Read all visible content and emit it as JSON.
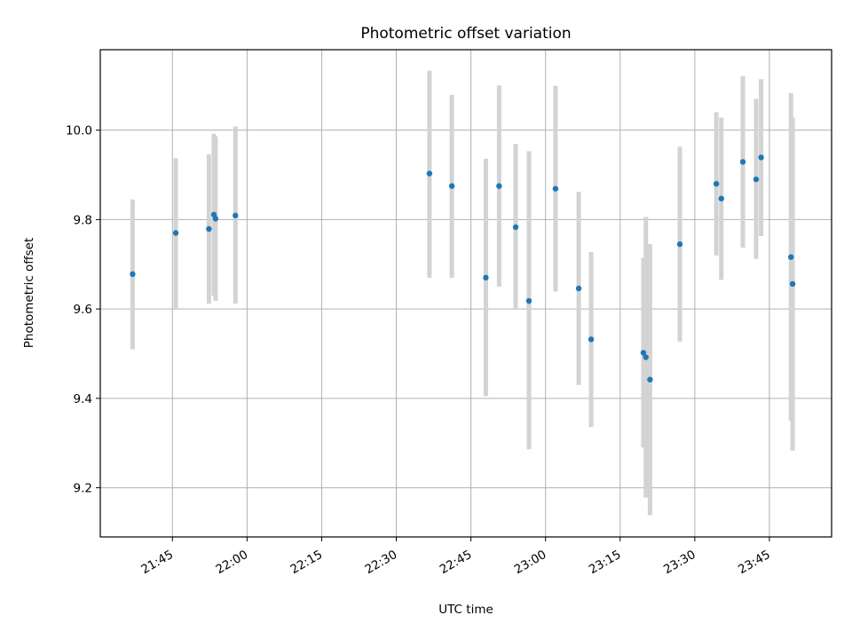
{
  "chart_data": {
    "type": "scatter",
    "title": "Photometric offset variation",
    "xlabel": "UTC time",
    "ylabel": "Photometric offset",
    "x_ticks": [
      "21:45",
      "22:00",
      "22:15",
      "22:30",
      "22:45",
      "23:00",
      "23:15",
      "23:30",
      "23:45"
    ],
    "x_tick_minutes": [
      1305,
      1320,
      1335,
      1350,
      1365,
      1380,
      1395,
      1410,
      1425
    ],
    "xlim": [
      1290.5,
      1437.5
    ],
    "y_ticks": [
      "9.2",
      "9.4",
      "9.6",
      "9.8",
      "10.0"
    ],
    "y_tick_values": [
      9.2,
      9.4,
      9.6,
      9.8,
      10.0
    ],
    "ylim": [
      9.09,
      10.18
    ],
    "grid": true,
    "marker_color": "#1f77b4",
    "errorbar_color": "#d3d3d3",
    "points": [
      {
        "t": "21:37:00",
        "y": 9.678,
        "low": 9.51,
        "high": 9.845
      },
      {
        "t": "21:45:40",
        "y": 9.77,
        "low": 9.6,
        "high": 9.937
      },
      {
        "t": "21:52:20",
        "y": 9.779,
        "low": 9.612,
        "high": 9.946
      },
      {
        "t": "21:53:20",
        "y": 9.811,
        "low": 9.63,
        "high": 9.992
      },
      {
        "t": "21:53:40",
        "y": 9.802,
        "low": 9.618,
        "high": 9.986
      },
      {
        "t": "21:57:40",
        "y": 9.809,
        "low": 9.612,
        "high": 10.008
      },
      {
        "t": "22:36:40",
        "y": 9.903,
        "low": 9.67,
        "high": 10.133
      },
      {
        "t": "22:41:10",
        "y": 9.875,
        "low": 9.67,
        "high": 10.079
      },
      {
        "t": "22:48:00",
        "y": 9.67,
        "low": 9.405,
        "high": 9.936
      },
      {
        "t": "22:50:40",
        "y": 9.875,
        "low": 9.65,
        "high": 10.1
      },
      {
        "t": "22:54:00",
        "y": 9.783,
        "low": 9.6,
        "high": 9.969
      },
      {
        "t": "22:56:40",
        "y": 9.618,
        "low": 9.286,
        "high": 9.953
      },
      {
        "t": "23:02:00",
        "y": 9.869,
        "low": 9.639,
        "high": 10.099
      },
      {
        "t": "23:06:40",
        "y": 9.646,
        "low": 9.43,
        "high": 9.862
      },
      {
        "t": "23:09:10",
        "y": 9.532,
        "low": 9.336,
        "high": 9.727
      },
      {
        "t": "23:19:40",
        "y": 9.502,
        "low": 9.29,
        "high": 9.715
      },
      {
        "t": "23:20:10",
        "y": 9.492,
        "low": 9.178,
        "high": 9.806
      },
      {
        "t": "23:21:00",
        "y": 9.442,
        "low": 9.139,
        "high": 9.745
      },
      {
        "t": "23:27:00",
        "y": 9.745,
        "low": 9.527,
        "high": 9.963
      },
      {
        "t": "23:34:20",
        "y": 9.88,
        "low": 9.72,
        "high": 10.04
      },
      {
        "t": "23:35:20",
        "y": 9.847,
        "low": 9.665,
        "high": 10.028
      },
      {
        "t": "23:39:40",
        "y": 9.929,
        "low": 9.737,
        "high": 10.121
      },
      {
        "t": "23:42:20",
        "y": 9.89,
        "low": 9.712,
        "high": 10.07
      },
      {
        "t": "23:43:20",
        "y": 9.939,
        "low": 9.763,
        "high": 10.114
      },
      {
        "t": "23:49:20",
        "y": 9.716,
        "low": 9.35,
        "high": 10.083
      },
      {
        "t": "23:49:40",
        "y": 9.656,
        "low": 9.283,
        "high": 10.028
      }
    ]
  }
}
